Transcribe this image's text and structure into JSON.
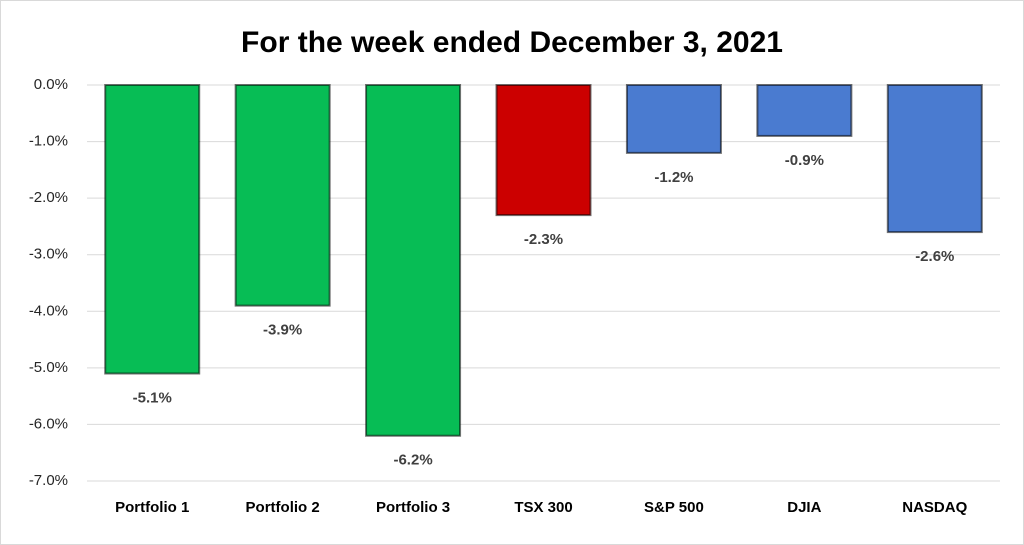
{
  "chart_data": {
    "type": "bar",
    "title": "For the week ended December 3, 2021",
    "categories": [
      "Portfolio 1",
      "Portfolio 2",
      "Portfolio 3",
      "TSX 300",
      "S&P 500",
      "DJIA",
      "NASDAQ"
    ],
    "values": [
      -5.1,
      -3.9,
      -6.2,
      -2.3,
      -1.2,
      -0.9,
      -2.6
    ],
    "value_labels": [
      "-5.1%",
      "-3.9%",
      "-6.2%",
      "-2.3%",
      "-1.2%",
      "-0.9%",
      "-2.6%"
    ],
    "colors": [
      "#07bd55",
      "#07bd55",
      "#07bd55",
      "#cc0000",
      "#4a7bd0",
      "#4a7bd0",
      "#4a7bd0"
    ],
    "ylim": [
      -7,
      0
    ],
    "yticks": [
      {
        "value": 0,
        "label": "0.0%"
      },
      {
        "value": -1,
        "label": "-1.0%"
      },
      {
        "value": -2,
        "label": "-2.0%"
      },
      {
        "value": -3,
        "label": "-3.0%"
      },
      {
        "value": -4,
        "label": "-4.0%"
      },
      {
        "value": -5,
        "label": "-5.0%"
      },
      {
        "value": -6,
        "label": "-6.0%"
      },
      {
        "value": -7,
        "label": "-7.0%"
      }
    ],
    "grid": true
  }
}
